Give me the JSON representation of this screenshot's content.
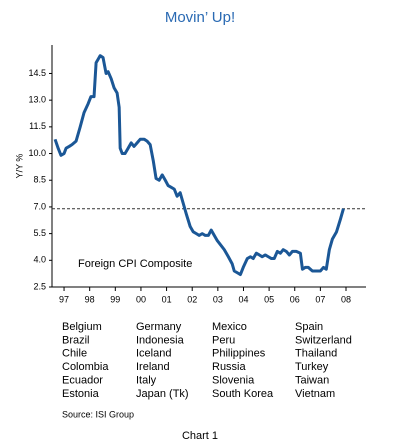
{
  "chart_data": {
    "type": "line",
    "title": "Movin’ Up!",
    "y_label": "Y/Y %",
    "annotation": "Foreign CPI Composite",
    "color": "#1b5796",
    "x": [
      1996.65,
      1996.77,
      1996.88,
      1997.0,
      1997.08,
      1997.2,
      1997.31,
      1997.47,
      1997.63,
      1997.78,
      1997.94,
      1998.05,
      1998.17,
      1998.25,
      1998.33,
      1998.41,
      1998.52,
      1998.64,
      1998.72,
      1998.84,
      1998.95,
      1999.07,
      1999.15,
      1999.19,
      1999.27,
      1999.38,
      1999.5,
      1999.62,
      1999.73,
      1999.85,
      1999.97,
      2000.13,
      2000.24,
      2000.36,
      2000.48,
      2000.59,
      2000.71,
      2000.83,
      2000.95,
      2001.06,
      2001.18,
      2001.3,
      2001.41,
      2001.53,
      2001.65,
      2001.77,
      2001.92,
      2002.04,
      2002.16,
      2002.27,
      2002.39,
      2002.51,
      2002.63,
      2002.74,
      2002.86,
      2002.98,
      2003.09,
      2003.25,
      2003.41,
      2003.56,
      2003.64,
      2003.76,
      2003.88,
      2003.99,
      2004.15,
      2004.27,
      2004.38,
      2004.5,
      2004.62,
      2004.73,
      2004.85,
      2004.97,
      2005.09,
      2005.2,
      2005.32,
      2005.44,
      2005.55,
      2005.67,
      2005.79,
      2005.91,
      2006.06,
      2006.22,
      2006.3,
      2006.41,
      2006.53,
      2006.69,
      2006.84,
      2007.0,
      2007.12,
      2007.23,
      2007.35,
      2007.47,
      2007.63,
      2007.78,
      2007.9
    ],
    "values": [
      10.8,
      10.3,
      9.9,
      10.0,
      10.3,
      10.4,
      10.5,
      10.7,
      11.5,
      12.3,
      12.8,
      13.2,
      13.2,
      15.1,
      15.3,
      15.5,
      15.4,
      14.5,
      14.6,
      14.2,
      13.7,
      13.4,
      12.6,
      10.3,
      10.0,
      10.0,
      10.3,
      10.6,
      10.4,
      10.6,
      10.8,
      10.8,
      10.7,
      10.5,
      9.6,
      8.6,
      8.5,
      8.8,
      8.5,
      8.2,
      8.1,
      8.0,
      7.6,
      7.8,
      7.2,
      6.6,
      5.9,
      5.6,
      5.5,
      5.4,
      5.5,
      5.4,
      5.4,
      5.7,
      5.4,
      5.1,
      4.9,
      4.6,
      4.2,
      3.8,
      3.4,
      3.3,
      3.2,
      3.6,
      4.1,
      4.2,
      4.1,
      4.4,
      4.3,
      4.2,
      4.3,
      4.2,
      4.1,
      4.1,
      4.5,
      4.4,
      4.6,
      4.5,
      4.3,
      4.5,
      4.5,
      4.4,
      3.5,
      3.6,
      3.6,
      3.4,
      3.4,
      3.4,
      3.6,
      3.5,
      4.6,
      5.2,
      5.6,
      6.3,
      6.9
    ],
    "reference_line": 6.9,
    "xlim": [
      1996.53,
      2008.78
    ],
    "xticks": [
      {
        "value": 1997,
        "label": "97"
      },
      {
        "value": 1998,
        "label": "98"
      },
      {
        "value": 1999,
        "label": "99"
      },
      {
        "value": 2000,
        "label": "00"
      },
      {
        "value": 2001,
        "label": "01"
      },
      {
        "value": 2002,
        "label": "02"
      },
      {
        "value": 2003,
        "label": "03"
      },
      {
        "value": 2004,
        "label": "04"
      },
      {
        "value": 2005,
        "label": "05"
      },
      {
        "value": 2006,
        "label": "06"
      },
      {
        "value": 2007,
        "label": "07"
      },
      {
        "value": 2008,
        "label": "08"
      }
    ],
    "ylim": [
      2.5,
      16.1
    ],
    "yticks": [
      2.5,
      {
        "value": 4,
        "label": "4.0"
      },
      5.5,
      {
        "value": 7,
        "label": "7.0"
      },
      8.5,
      {
        "value": 10,
        "label": "10.0"
      },
      11.5,
      {
        "value": 13,
        "label": "13.0"
      },
      14.5
    ],
    "grid": false,
    "countries": [
      [
        "Belgium",
        "Brazil",
        "Chile",
        "Colombia",
        "Ecuador",
        "Estonia"
      ],
      [
        "Germany",
        "Indonesia",
        "Iceland",
        "Ireland",
        "Italy",
        "Japan (Tk)"
      ],
      [
        "Mexico",
        "Peru",
        "Philippines",
        "Russia",
        "Slovenia",
        "South Korea"
      ],
      [
        "Spain",
        "Switzerland",
        "Thailand",
        "Turkey",
        "Taiwan",
        "Vietnam"
      ]
    ],
    "source": "Source: ISI Group",
    "caption": "Chart 1"
  }
}
